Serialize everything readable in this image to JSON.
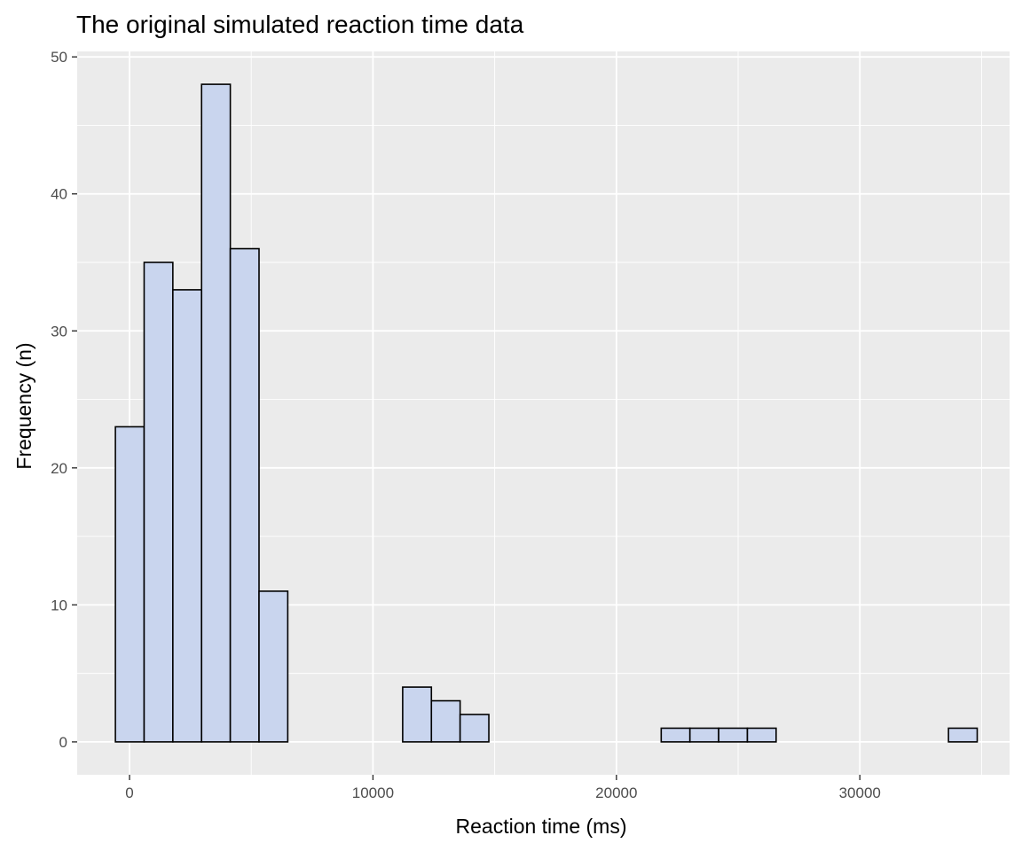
{
  "chart_data": {
    "type": "bar",
    "title": "The original simulated reaction time data",
    "xlabel": "Reaction time (ms)",
    "ylabel": "Frequency (n)",
    "xlim": [
      -2150,
      36150
    ],
    "ylim": [
      -2.4,
      50.4
    ],
    "x_ticks": [
      0,
      10000,
      20000,
      30000
    ],
    "x_tick_labels": [
      "0",
      "10000",
      "20000",
      "30000"
    ],
    "y_ticks": [
      0,
      10,
      20,
      30,
      40,
      50
    ],
    "y_tick_labels": [
      "0",
      "10",
      "20",
      "30",
      "40",
      "50"
    ],
    "bin_width": 1180,
    "bin_starts": [
      -580,
      600,
      1780,
      2960,
      4140,
      5320,
      6500,
      7680,
      8860,
      10040,
      11220,
      12400,
      13580,
      14760,
      15940,
      17120,
      18300,
      19480,
      20660,
      21840,
      23020,
      24200,
      25380,
      26560,
      27740,
      28920,
      30100,
      31280,
      32460,
      33640
    ],
    "values": [
      23,
      35,
      33,
      48,
      36,
      11,
      0,
      0,
      0,
      0,
      4,
      3,
      2,
      0,
      0,
      0,
      0,
      0,
      0,
      1,
      1,
      1,
      1,
      0,
      0,
      0,
      0,
      0,
      0,
      1
    ],
    "grid": true,
    "legend": "none",
    "colors": {
      "panel_background": "#ebebeb",
      "grid": "#ffffff",
      "bar_fill": "#c9d5ee",
      "bar_outline": "#000000",
      "tick": "#333333"
    }
  }
}
